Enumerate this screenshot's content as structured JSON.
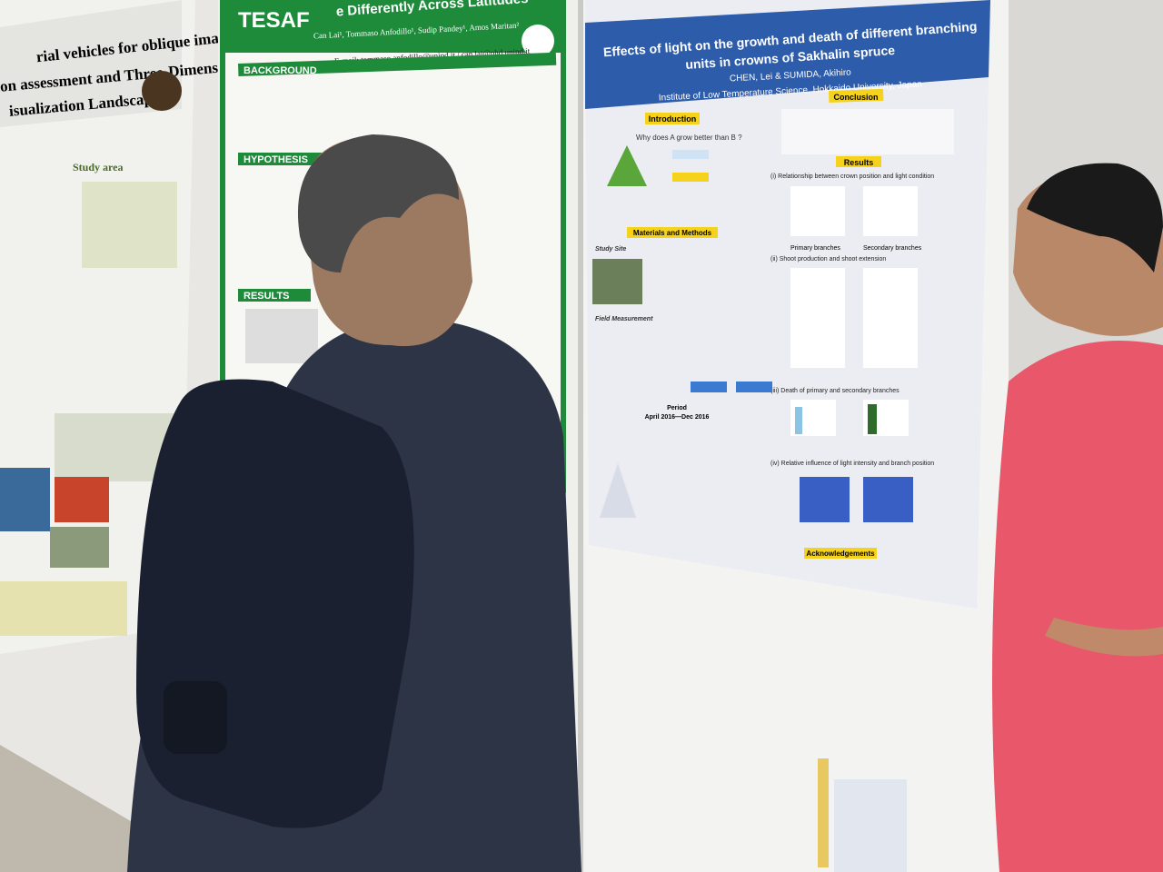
{
  "left_poster": {
    "title_lines": [
      "rial vehicles for oblique imaging Karst",
      "on assessment and Three-Dimensional",
      "isualization Landscape"
    ],
    "section": "Study area"
  },
  "middle_poster": {
    "logo": "TESAF",
    "title": "e Differently Across Latitudes",
    "authors": "Can Lai¹, Tommaso Anfodillo¹, Sudip Pandey¹, Amos Maritan²",
    "email": "E-mail: tommaso.anfodillo@unipd.it / can.lai@phd.unipd.it",
    "sections": [
      "BACKGROUND",
      "HYPOTHESIS",
      "RESULTS"
    ]
  },
  "right_poster": {
    "title_lines": [
      "Effects of light on the growth and death of different branching",
      "units in crowns of Sakhalin spruce"
    ],
    "authors": "CHEN, Lei  &  SUMIDA, Akihiro",
    "affiliation": "Institute of Low Temperature Science, Hokkaido University, Japan",
    "sections": [
      "Introduction",
      "Conclusion",
      "Results",
      "Materials and Methods",
      "Acknowledgements"
    ],
    "question": "Why does A grow better than B ?",
    "subsections": [
      "Study Site",
      "Field Measurement"
    ],
    "period_label": "Period",
    "period": "April 2016—Dec 2016",
    "results_panels": [
      "(i)  Relationship between crown position and light condition",
      "(ii)  Shoot production and shoot extension",
      "(iii)  Death of primary and secondary branches",
      "(iv)  Relative influence of light intensity and branch position"
    ],
    "branch_labels": [
      "Primary branches",
      "Secondary branches"
    ]
  }
}
